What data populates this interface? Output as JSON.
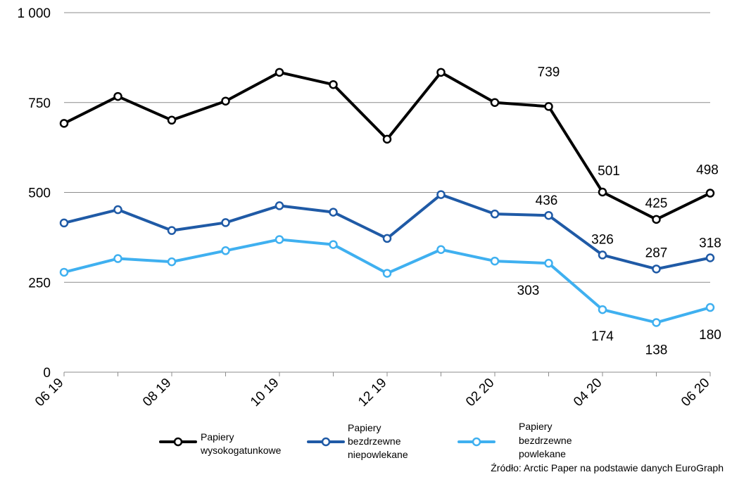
{
  "chart_data": {
    "type": "line",
    "categories": [
      "06 19",
      "07 19",
      "08 19",
      "09 19",
      "10 19",
      "11 19",
      "12 19",
      "01 20",
      "02 20",
      "03 20",
      "04 20",
      "05 20",
      "06 20"
    ],
    "x_tick_labels": [
      "06 19",
      "08 19",
      "10 19",
      "12 19",
      "02 20",
      "04 20",
      "06 20"
    ],
    "ylim": [
      0,
      1000
    ],
    "y_ticks": [
      0,
      250,
      500,
      750,
      1000
    ],
    "y_tick_labels": [
      "0",
      "250",
      "500",
      "750",
      "1 000"
    ],
    "grid": "horizontal",
    "legend_position": "bottom",
    "series": [
      {
        "name_lines": [
          "Papiery",
          "wysokogatunkowe"
        ],
        "color": "#000000",
        "values": [
          692,
          767,
          701,
          754,
          834,
          800,
          648,
          834,
          750,
          739,
          501,
          425,
          498
        ],
        "data_labels": {
          "9": "739",
          "10": "501",
          "11": "425",
          "12": "498"
        }
      },
      {
        "name_lines": [
          "Papiery",
          "bezdrzewne",
          "niepowlekane"
        ],
        "color": "#1f5aa6",
        "values": [
          415,
          452,
          394,
          416,
          463,
          445,
          372,
          494,
          440,
          436,
          326,
          287,
          318
        ],
        "data_labels": {
          "9": "436",
          "10": "326",
          "11": "287",
          "12": "318"
        }
      },
      {
        "name_lines": [
          "Papiery",
          "bezdrzewne",
          "powlekane"
        ],
        "color": "#3fb0f0",
        "values": [
          278,
          316,
          307,
          338,
          369,
          355,
          275,
          341,
          309,
          303,
          174,
          138,
          180
        ],
        "data_labels": {
          "9": "303",
          "10": "174",
          "11": "138",
          "12": "180"
        }
      }
    ]
  },
  "source": "Źródło: Arctic Paper na podstawie danych EuroGraph"
}
